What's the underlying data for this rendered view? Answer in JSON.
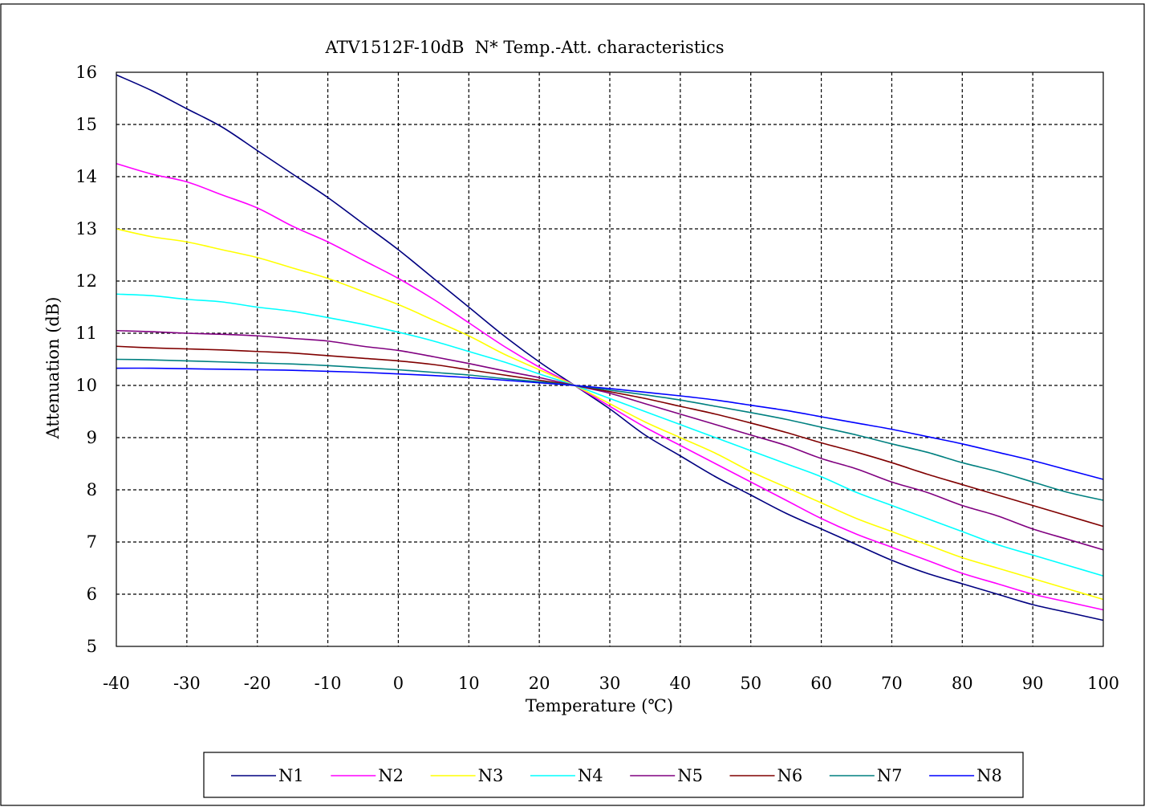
{
  "chart_data": {
    "type": "line",
    "title": "ATV1512F-10dB  N* Temp.-Att. characteristics",
    "xlabel": "Temperature (℃)",
    "ylabel": "Attenuation (dB)",
    "xlim": [
      -40,
      100
    ],
    "ylim": [
      5,
      16
    ],
    "xticks": [
      -40,
      -30,
      -20,
      -10,
      0,
      10,
      20,
      30,
      40,
      50,
      60,
      70,
      80,
      90,
      100
    ],
    "yticks": [
      5,
      6,
      7,
      8,
      9,
      10,
      11,
      12,
      13,
      14,
      15,
      16
    ],
    "grid": true,
    "legend_position": "bottom",
    "x": [
      -40,
      -35,
      -30,
      -25,
      -20,
      -15,
      -10,
      -5,
      0,
      5,
      10,
      15,
      20,
      25,
      30,
      35,
      40,
      45,
      50,
      55,
      60,
      65,
      70,
      75,
      80,
      85,
      90,
      95,
      100
    ],
    "series": [
      {
        "name": "N1",
        "color": "#000080",
        "values": [
          15.95,
          15.65,
          15.3,
          14.95,
          14.5,
          14.05,
          13.6,
          13.1,
          12.6,
          12.05,
          11.5,
          10.95,
          10.45,
          10.0,
          9.55,
          9.05,
          8.65,
          8.25,
          7.9,
          7.55,
          7.25,
          6.95,
          6.65,
          6.4,
          6.2,
          6.0,
          5.8,
          5.65,
          5.5
        ]
      },
      {
        "name": "N2",
        "color": "#ff00ff",
        "values": [
          14.25,
          14.05,
          13.9,
          13.65,
          13.4,
          13.05,
          12.75,
          12.4,
          12.05,
          11.65,
          11.2,
          10.75,
          10.35,
          10.0,
          9.6,
          9.2,
          8.85,
          8.5,
          8.15,
          7.8,
          7.45,
          7.15,
          6.9,
          6.65,
          6.4,
          6.2,
          6.0,
          5.85,
          5.7
        ]
      },
      {
        "name": "N3",
        "color": "#ffff00",
        "values": [
          13.0,
          12.85,
          12.75,
          12.6,
          12.45,
          12.25,
          12.05,
          11.8,
          11.55,
          11.25,
          10.95,
          10.6,
          10.3,
          10.0,
          9.65,
          9.3,
          9.0,
          8.7,
          8.35,
          8.05,
          7.75,
          7.45,
          7.2,
          6.95,
          6.7,
          6.5,
          6.3,
          6.1,
          5.9
        ]
      },
      {
        "name": "N4",
        "color": "#00ffff",
        "values": [
          11.75,
          11.72,
          11.65,
          11.6,
          11.5,
          11.42,
          11.3,
          11.17,
          11.02,
          10.85,
          10.65,
          10.45,
          10.22,
          10.0,
          9.75,
          9.5,
          9.25,
          9.0,
          8.75,
          8.5,
          8.25,
          7.95,
          7.7,
          7.45,
          7.2,
          6.95,
          6.75,
          6.55,
          6.35
        ]
      },
      {
        "name": "N5",
        "color": "#800080",
        "values": [
          11.05,
          11.03,
          11.0,
          10.98,
          10.95,
          10.9,
          10.85,
          10.75,
          10.67,
          10.55,
          10.42,
          10.28,
          10.15,
          10.0,
          9.85,
          9.65,
          9.45,
          9.25,
          9.05,
          8.85,
          8.6,
          8.4,
          8.15,
          7.95,
          7.7,
          7.5,
          7.25,
          7.05,
          6.85
        ]
      },
      {
        "name": "N6",
        "color": "#800000",
        "values": [
          10.75,
          10.72,
          10.7,
          10.68,
          10.65,
          10.62,
          10.57,
          10.52,
          10.47,
          10.4,
          10.3,
          10.2,
          10.1,
          10.0,
          9.88,
          9.75,
          9.6,
          9.45,
          9.28,
          9.1,
          8.9,
          8.72,
          8.52,
          8.3,
          8.1,
          7.9,
          7.7,
          7.5,
          7.3
        ]
      },
      {
        "name": "N7",
        "color": "#008080",
        "values": [
          10.5,
          10.49,
          10.47,
          10.45,
          10.43,
          10.41,
          10.38,
          10.34,
          10.3,
          10.25,
          10.2,
          10.13,
          10.07,
          10.0,
          9.91,
          9.82,
          9.72,
          9.6,
          9.48,
          9.35,
          9.2,
          9.05,
          8.88,
          8.72,
          8.52,
          8.35,
          8.15,
          7.95,
          7.8
        ]
      },
      {
        "name": "N8",
        "color": "#0000ff",
        "values": [
          10.33,
          10.33,
          10.32,
          10.31,
          10.3,
          10.29,
          10.27,
          10.25,
          10.22,
          10.19,
          10.15,
          10.1,
          10.05,
          10.0,
          9.94,
          9.87,
          9.8,
          9.72,
          9.62,
          9.52,
          9.4,
          9.28,
          9.16,
          9.02,
          8.88,
          8.72,
          8.56,
          8.38,
          8.2
        ]
      }
    ]
  }
}
